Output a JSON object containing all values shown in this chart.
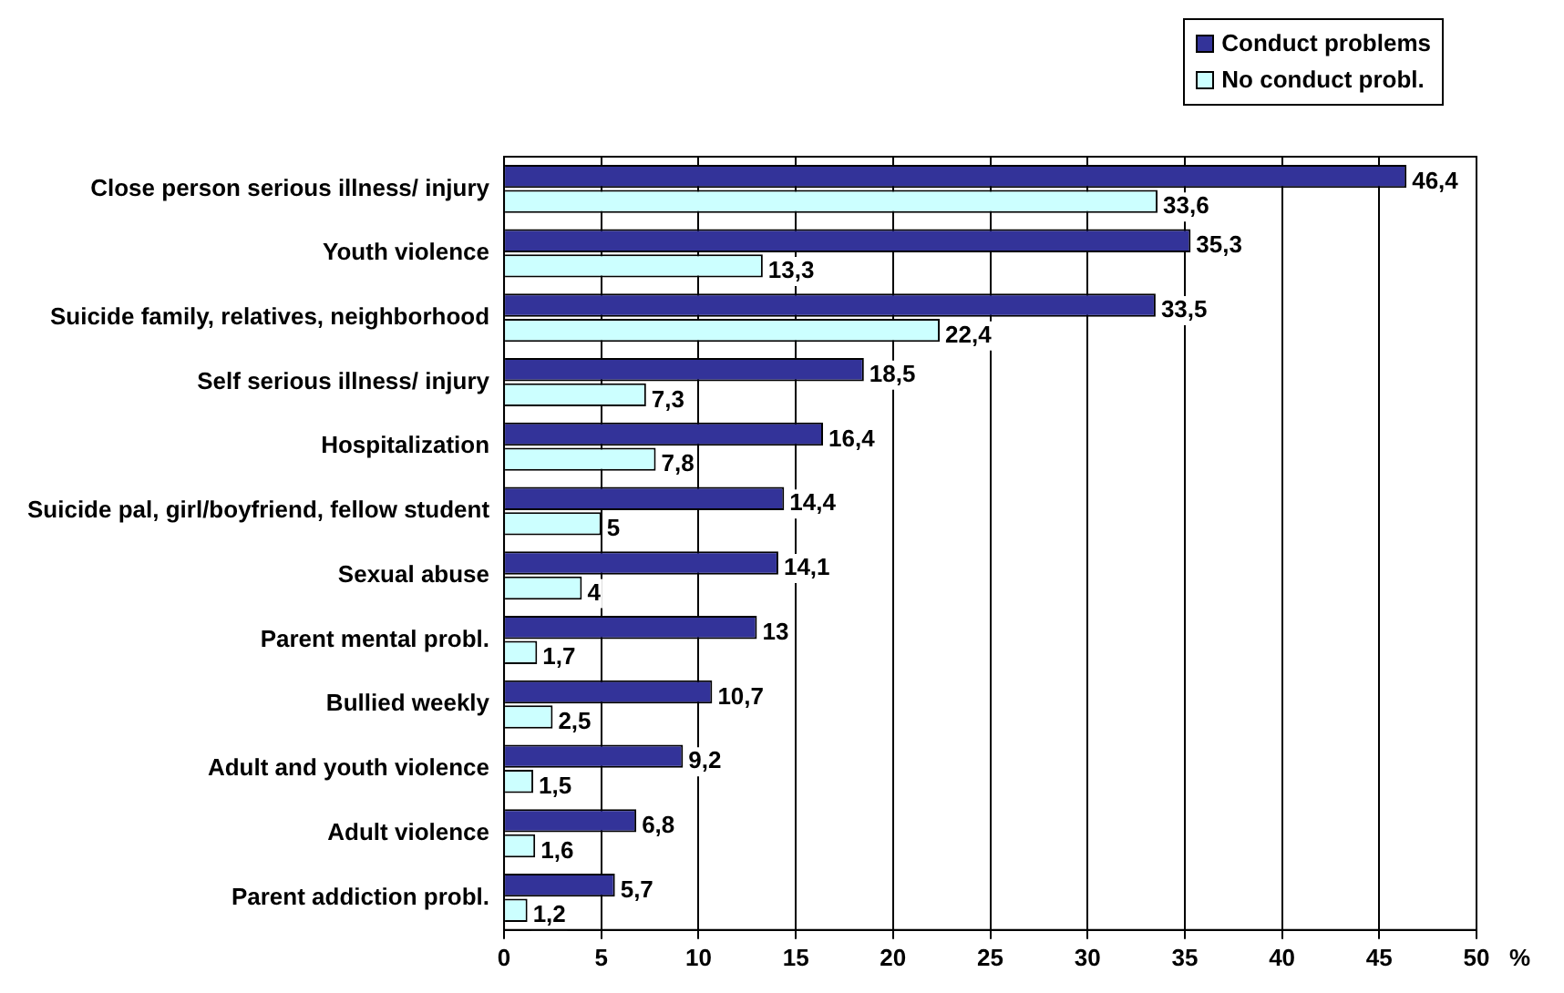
{
  "chart_data": {
    "type": "bar",
    "orientation": "horizontal",
    "xlabel": "%",
    "categories": [
      "Close person serious illness/ injury",
      "Youth violence",
      "Suicide family, relatives, neighborhood",
      "Self serious illness/ injury",
      "Hospitalization",
      "Suicide pal, girl/boyfriend, fellow student",
      "Sexual abuse",
      "Parent mental probl.",
      "Bullied weekly",
      "Adult and youth violence",
      "Adult violence",
      "Parent addiction probl."
    ],
    "series": [
      {
        "name": "Conduct problems",
        "color": "#333399",
        "values": [
          46.4,
          35.3,
          33.5,
          18.5,
          16.4,
          14.4,
          14.1,
          13,
          10.7,
          9.2,
          6.8,
          5.7
        ],
        "value_labels": [
          "46,4",
          "35,3",
          "33,5",
          "18,5",
          "16,4",
          "14,4",
          "14,1",
          "13",
          "10,7",
          "9,2",
          "6,8",
          "5,7"
        ]
      },
      {
        "name": "No conduct probl.",
        "color": "#ccffff",
        "values": [
          33.6,
          13.3,
          22.4,
          7.3,
          7.8,
          5,
          4,
          1.7,
          2.5,
          1.5,
          1.6,
          1.2
        ],
        "value_labels": [
          "33,6",
          "13,3",
          "22,4",
          "7,3",
          "7,8",
          "5",
          "4",
          "1,7",
          "2,5",
          "1,5",
          "1,6",
          "1,2"
        ]
      }
    ],
    "xlim": [
      0,
      50
    ],
    "xticks": [
      0,
      5,
      10,
      15,
      20,
      25,
      30,
      35,
      40,
      45,
      50
    ],
    "grid": "x",
    "legend": "top right"
  }
}
